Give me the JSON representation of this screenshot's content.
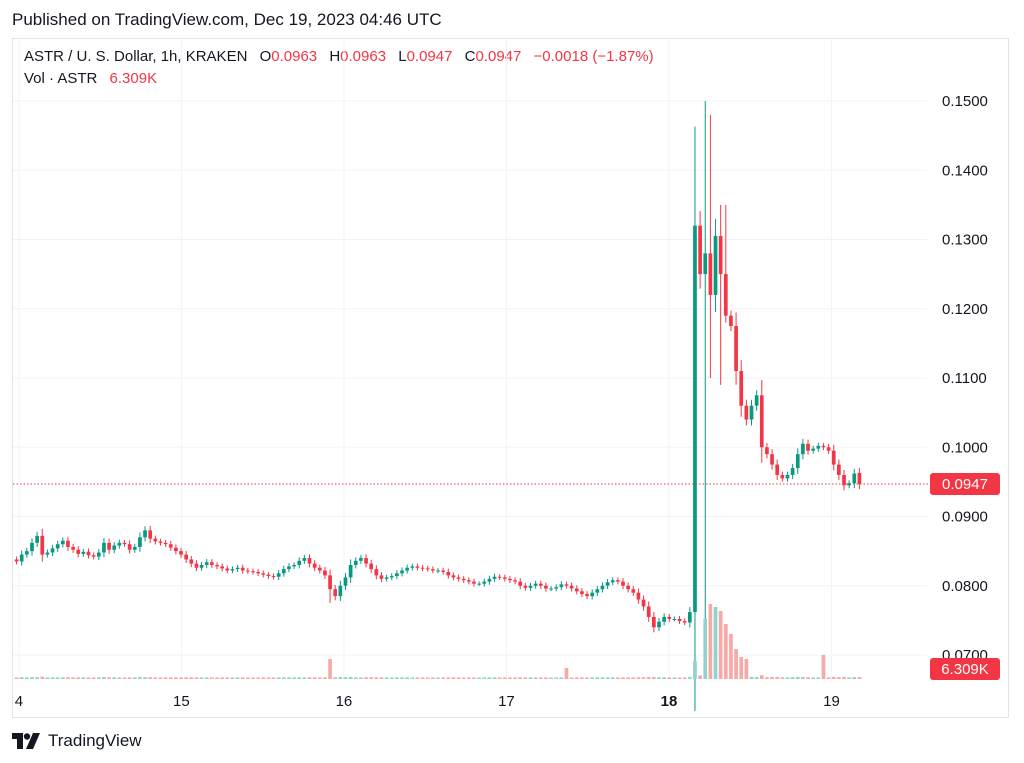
{
  "published": "Published on TradingView.com, Dec 19, 2023 04:46 UTC",
  "legend": {
    "symbol": "ASTR / U. S. Dollar, 1h, KRAKEN",
    "o_label": "O",
    "o_value": "0.0963",
    "h_label": "H",
    "h_value": "0.0963",
    "l_label": "L",
    "l_value": "0.0947",
    "c_label": "C",
    "c_value": "0.0947",
    "change": "−0.0018 (−1.87%)",
    "vol_label": "Vol · ASTR",
    "vol_value": "6.309K"
  },
  "brand": "TradingView",
  "colors": {
    "up": "#089981",
    "down": "#f23645",
    "up_vol": "#92d2cc",
    "down_vol": "#f7a9a7",
    "grid": "#f0f3fa"
  },
  "chart_data": {
    "type": "candlestick",
    "y_axis_ticks": [
      "0.1500",
      "0.1400",
      "0.1300",
      "0.1200",
      "0.1100",
      "0.1000",
      "0.0900",
      "0.0800",
      "0.0700"
    ],
    "ylim": [
      0.066,
      0.151
    ],
    "x_axis_ticks": [
      {
        "label": "4",
        "day": 14.0
      },
      {
        "label": "15",
        "day": 15.0
      },
      {
        "label": "16",
        "day": 16.0
      },
      {
        "label": "17",
        "day": 17.0
      },
      {
        "label": "18",
        "day": 18.0
      },
      {
        "label": "19",
        "day": 19.0
      }
    ],
    "xlim": [
      13.97,
      19.2
    ],
    "last_price": "0.0947",
    "last_price_value": 0.0947,
    "last_volume": "6.309K",
    "closes": [
      0.0835,
      0.0845,
      0.085,
      0.0862,
      0.0872,
      0.0845,
      0.0848,
      0.0854,
      0.086,
      0.0865,
      0.0856,
      0.0852,
      0.0846,
      0.0849,
      0.0844,
      0.0842,
      0.0848,
      0.0862,
      0.0852,
      0.0858,
      0.0862,
      0.086,
      0.0852,
      0.0856,
      0.087,
      0.088,
      0.0868,
      0.0864,
      0.0862,
      0.086,
      0.0855,
      0.085,
      0.0845,
      0.0838,
      0.0832,
      0.0826,
      0.083,
      0.0834,
      0.083,
      0.0828,
      0.0825,
      0.0822,
      0.0824,
      0.0826,
      0.0822,
      0.0821,
      0.082,
      0.0818,
      0.0816,
      0.0814,
      0.0813,
      0.0818,
      0.0824,
      0.0828,
      0.083,
      0.0836,
      0.084,
      0.0832,
      0.0826,
      0.0822,
      0.0815,
      0.0795,
      0.0785,
      0.08,
      0.0812,
      0.083,
      0.0836,
      0.084,
      0.0832,
      0.0824,
      0.0815,
      0.081,
      0.0812,
      0.0814,
      0.0818,
      0.0822,
      0.0826,
      0.0828,
      0.0826,
      0.0825,
      0.0824,
      0.0822,
      0.0822,
      0.082,
      0.0815,
      0.0812,
      0.081,
      0.0808,
      0.0806,
      0.0803,
      0.0803,
      0.0806,
      0.081,
      0.0813,
      0.0812,
      0.081,
      0.0808,
      0.0806,
      0.08,
      0.0797,
      0.08,
      0.0803,
      0.08,
      0.0796,
      0.0796,
      0.0798,
      0.0802,
      0.08,
      0.0796,
      0.0792,
      0.0788,
      0.0785,
      0.079,
      0.0795,
      0.08,
      0.0805,
      0.0808,
      0.0806,
      0.08,
      0.0795,
      0.079,
      0.078,
      0.077,
      0.0755,
      0.074,
      0.0748,
      0.0755,
      0.0752,
      0.0752,
      0.0749,
      0.0747,
      0.0762,
      0.132,
      0.125,
      0.128,
      0.122,
      0.1305,
      0.125,
      0.119,
      0.1175,
      0.111,
      0.106,
      0.104,
      0.106,
      0.1075,
      0.1,
      0.099,
      0.0975,
      0.096,
      0.0955,
      0.096,
      0.097,
      0.099,
      0.1005,
      0.0995,
      0.0998,
      0.1002,
      0.1,
      0.0995,
      0.0975,
      0.096,
      0.0945,
      0.0948,
      0.0962,
      0.0947
    ]
  }
}
